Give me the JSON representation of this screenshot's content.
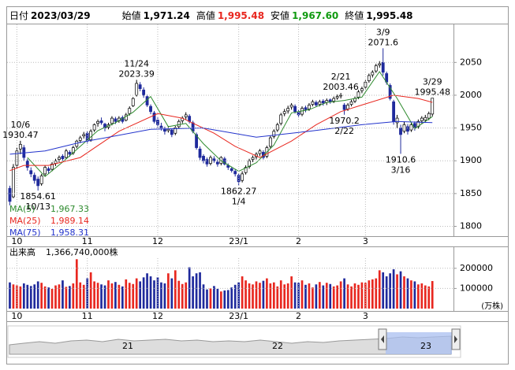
{
  "header": [
    {
      "label": "日付",
      "text": "2023/03/29"
    },
    {
      "label": "始値",
      "text": "1,971.24"
    },
    {
      "label": "高値",
      "text": "1,995.48",
      "color": "#e8271f"
    },
    {
      "label": "安値",
      "text": "1,967.60",
      "color": "#109a10"
    },
    {
      "label": "終値",
      "text": "1,995.48"
    }
  ],
  "chart_data": [
    {
      "type": "candlestick",
      "up_color": "#ffffff",
      "down_color": "#1f2a9c",
      "grid": true,
      "xlim": [
        -1,
        126
      ],
      "xticks": [
        {
          "value": 2,
          "label": "10"
        },
        {
          "value": 22,
          "label": "11"
        },
        {
          "value": 42,
          "label": "12"
        },
        {
          "value": 65,
          "label": "23/1"
        },
        {
          "value": 82,
          "label": "2"
        },
        {
          "value": 101,
          "label": "3"
        }
      ],
      "ylim": [
        1785,
        2108
      ],
      "yticks": [
        1800,
        1850,
        1900,
        1950,
        2000,
        2050
      ],
      "candles": [
        [
          1858,
          1862,
          1832,
          1838
        ],
        [
          1845,
          1895,
          1843,
          1890
        ],
        [
          1893,
          1920,
          1888,
          1915
        ],
        [
          1918,
          1930.47,
          1910,
          1925
        ],
        [
          1920,
          1924,
          1900,
          1905
        ],
        [
          1900,
          1903,
          1885,
          1890
        ],
        [
          1885,
          1890,
          1875,
          1880
        ],
        [
          1878,
          1882,
          1865,
          1870
        ],
        [
          1872,
          1876,
          1854.61,
          1862
        ],
        [
          1865,
          1880,
          1862,
          1877
        ],
        [
          1880,
          1893,
          1876,
          1890
        ],
        [
          1888,
          1891,
          1880,
          1885
        ],
        [
          1887,
          1898,
          1884,
          1895
        ],
        [
          1896,
          1903,
          1892,
          1900
        ],
        [
          1902,
          1908,
          1898,
          1905
        ],
        [
          1907,
          1910,
          1900,
          1903
        ],
        [
          1905,
          1918,
          1903,
          1915
        ],
        [
          1913,
          1916,
          1906,
          1910
        ],
        [
          1912,
          1923,
          1909,
          1920
        ],
        [
          1922,
          1932,
          1919,
          1930
        ],
        [
          1931,
          1938,
          1927,
          1935
        ],
        [
          1938,
          1944,
          1934,
          1940
        ],
        [
          1942,
          1945,
          1926,
          1930
        ],
        [
          1932,
          1948,
          1929,
          1945
        ],
        [
          1947,
          1957,
          1944,
          1955
        ],
        [
          1957,
          1963,
          1952,
          1960
        ],
        [
          1961,
          1966,
          1955,
          1958
        ],
        [
          1956,
          1958,
          1945,
          1950
        ],
        [
          1951,
          1958,
          1948,
          1955
        ],
        [
          1957,
          1968,
          1954,
          1965
        ],
        [
          1964,
          1967,
          1956,
          1960
        ],
        [
          1961,
          1968,
          1958,
          1965
        ],
        [
          1966,
          1969,
          1957,
          1960
        ],
        [
          1962,
          1973,
          1960,
          1970
        ],
        [
          1972,
          1983,
          1969,
          1980
        ],
        [
          1984,
          1997,
          1982,
          1995
        ],
        [
          2000,
          2023.39,
          1998,
          2018
        ],
        [
          2016,
          2020,
          2006,
          2010
        ],
        [
          2008,
          2012,
          1996,
          2000
        ],
        [
          1998,
          2001,
          1982,
          1985
        ],
        [
          1983,
          1986,
          1971,
          1975
        ],
        [
          1973,
          1976,
          1957,
          1960
        ],
        [
          1962,
          1966,
          1950,
          1955
        ],
        [
          1953,
          1958,
          1946,
          1950
        ],
        [
          1948,
          1952,
          1940,
          1945
        ],
        [
          1946,
          1953,
          1943,
          1948
        ],
        [
          1947,
          1949,
          1936,
          1940
        ],
        [
          1942,
          1953,
          1939,
          1950
        ],
        [
          1952,
          1963,
          1949,
          1960
        ],
        [
          1961,
          1968,
          1957,
          1965
        ],
        [
          1967,
          1974,
          1963,
          1970
        ],
        [
          1968,
          1971,
          1957,
          1960
        ],
        [
          1958,
          1961,
          1942,
          1945
        ],
        [
          1940,
          1943,
          1917,
          1920
        ],
        [
          1918,
          1922,
          1901,
          1905
        ],
        [
          1907,
          1910,
          1896,
          1900
        ],
        [
          1902,
          1905,
          1891,
          1895
        ],
        [
          1896,
          1908,
          1893,
          1905
        ],
        [
          1903,
          1907,
          1897,
          1900
        ],
        [
          1898,
          1902,
          1891,
          1895
        ],
        [
          1896,
          1907,
          1893,
          1905
        ],
        [
          1903,
          1906,
          1893,
          1895
        ],
        [
          1893,
          1896,
          1886,
          1890
        ],
        [
          1888,
          1891,
          1882,
          1885
        ],
        [
          1884,
          1887,
          1876,
          1880
        ],
        [
          1878,
          1881,
          1862.27,
          1868
        ],
        [
          1870,
          1884,
          1867,
          1880
        ],
        [
          1882,
          1893,
          1879,
          1890
        ],
        [
          1891,
          1903,
          1888,
          1900
        ],
        [
          1902,
          1908,
          1898,
          1905
        ],
        [
          1906,
          1913,
          1902,
          1910
        ],
        [
          1911,
          1918,
          1907,
          1915
        ],
        [
          1913,
          1916,
          1902,
          1905
        ],
        [
          1907,
          1923,
          1904,
          1920
        ],
        [
          1922,
          1938,
          1919,
          1935
        ],
        [
          1937,
          1948,
          1934,
          1945
        ],
        [
          1947,
          1958,
          1944,
          1955
        ],
        [
          1957,
          1973,
          1954,
          1970
        ],
        [
          1972,
          1979,
          1968,
          1975
        ],
        [
          1976,
          1984,
          1972,
          1980
        ],
        [
          1982,
          1988,
          1978,
          1985
        ],
        [
          1983,
          1986,
          1972,
          1975
        ],
        [
          1974,
          1978,
          1966,
          1970
        ],
        [
          1971,
          1983,
          1968,
          1980
        ],
        [
          1981,
          1984,
          1974,
          1978
        ],
        [
          1979,
          1988,
          1976,
          1985
        ],
        [
          1986,
          1993,
          1983,
          1990
        ],
        [
          1989,
          1992,
          1982,
          1985
        ],
        [
          1986,
          1993,
          1983,
          1990
        ],
        [
          1991,
          1994,
          1984,
          1988
        ],
        [
          1989,
          1995,
          1985,
          1992
        ],
        [
          1993,
          1995,
          1987,
          1990
        ],
        [
          1991,
          1998,
          1988,
          1995
        ],
        [
          1996,
          2001,
          1993,
          1998
        ],
        [
          1999,
          2003.46,
          1995,
          2000
        ],
        [
          1985,
          1988,
          1970.2,
          1978
        ],
        [
          1979,
          1988,
          1976,
          1985
        ],
        [
          1986,
          1993,
          1983,
          1990
        ],
        [
          1991,
          1998,
          1988,
          1995
        ],
        [
          1997,
          2008,
          1994,
          2005
        ],
        [
          2007,
          2013,
          2003,
          2010
        ],
        [
          2012,
          2023,
          2009,
          2020
        ],
        [
          2022,
          2033,
          2019,
          2030
        ],
        [
          2031,
          2038,
          2027,
          2035
        ],
        [
          2037,
          2048,
          2034,
          2045
        ],
        [
          2046,
          2052,
          2042,
          2048
        ],
        [
          2050,
          2071.6,
          2030,
          2035
        ],
        [
          2033,
          2036,
          2016,
          2020
        ],
        [
          2015,
          2018,
          1992,
          1995
        ],
        [
          1990,
          1993,
          1955,
          1960
        ],
        [
          1958,
          1970,
          1950,
          1965
        ],
        [
          1950,
          1955,
          1910.6,
          1940
        ],
        [
          1945,
          1960,
          1942,
          1955
        ],
        [
          1952,
          1956,
          1940,
          1945
        ],
        [
          1947,
          1958,
          1944,
          1955
        ],
        [
          1957,
          1960,
          1946,
          1950
        ],
        [
          1952,
          1963,
          1949,
          1960
        ],
        [
          1961,
          1968,
          1957,
          1965
        ],
        [
          1962,
          1970,
          1958,
          1966
        ],
        [
          1965,
          1975,
          1962,
          1972
        ],
        [
          1971.24,
          1995.48,
          1967.6,
          1995.48
        ]
      ],
      "lines": [
        {
          "name": "MA(5)",
          "color": "#2e8b2e",
          "legend_label": "1,967.33",
          "x": [
            5,
            10,
            15,
            20,
            25,
            30,
            35,
            40,
            45,
            50,
            55,
            60,
            65,
            70,
            75,
            80,
            85,
            90,
            95,
            100,
            105,
            110,
            115,
            120
          ],
          "values": [
            1905,
            1876,
            1898,
            1922,
            1946,
            1958,
            1974,
            1998,
            1952,
            1957,
            1926,
            1900,
            1884,
            1897,
            1924,
            1973,
            1978,
            1989,
            1992,
            1997,
            2036,
            1995,
            1949,
            1967.33
          ]
        },
        {
          "name": "MA(25)",
          "color": "#e8271f",
          "legend_label": "1,989.14",
          "x": [
            0,
            4,
            11,
            20,
            31,
            42,
            49,
            58,
            64,
            71,
            80,
            87,
            94,
            100,
            109,
            116,
            120
          ],
          "values": [
            1885,
            1893,
            1893,
            1905,
            1945,
            1972,
            1965,
            1942,
            1922,
            1905,
            1930,
            1955,
            1975,
            1985,
            2000,
            1995,
            1989.14
          ]
        },
        {
          "name": "MA(75)",
          "color": "#2233cc",
          "legend_label": "1,958.31",
          "x": [
            0,
            10,
            20,
            40,
            55,
            70,
            85,
            100,
            110,
            120
          ],
          "values": [
            1910,
            1915,
            1928,
            1948,
            1950,
            1936,
            1945,
            1955,
            1960,
            1958.31
          ]
        }
      ],
      "annotations": [
        {
          "label": "10/6",
          "x": 3,
          "price": 1930.47
        },
        {
          "label": "10/13",
          "x": 8,
          "price": 1854.61
        },
        {
          "label": "11/24",
          "x": 36,
          "price": 2023.39
        },
        {
          "label": "1/4",
          "x": 65,
          "price": 1862.27
        },
        {
          "label": "2/21",
          "x": 94,
          "price": 2003.46
        },
        {
          "label": "2/22",
          "x": 95,
          "price": 1970.2
        },
        {
          "label": "3/9",
          "x": 106,
          "price": 2071.6
        },
        {
          "label": "3/16",
          "x": 111,
          "price": 1910.6
        },
        {
          "label": "3/29",
          "x": 120,
          "price": 1995.48
        }
      ]
    },
    {
      "type": "bar",
      "title": "出来高",
      "title_value": "1,366,740,000株",
      "unit": "(万株)",
      "up_color": "#e8271f",
      "down_color": "#1f2a9c",
      "grid": true,
      "xlim": [
        -1,
        126
      ],
      "xticks": [
        {
          "value": 2,
          "label": "10"
        },
        {
          "value": 22,
          "label": "11"
        },
        {
          "value": 42,
          "label": "12"
        },
        {
          "value": 65,
          "label": "23/1"
        },
        {
          "value": 82,
          "label": "2"
        },
        {
          "value": 101,
          "label": "3"
        }
      ],
      "ylim": [
        0,
        250000
      ],
      "yticks": [
        100000,
        200000
      ],
      "values": [
        130000,
        120000,
        115000,
        110000,
        125000,
        118000,
        112000,
        120000,
        135000,
        128000,
        110000,
        105000,
        98000,
        115000,
        120000,
        140000,
        108000,
        112000,
        125000,
        245000,
        130000,
        118000,
        150000,
        180000,
        135000,
        128000,
        120000,
        115000,
        140000,
        125000,
        132000,
        118000,
        110000,
        145000,
        128000,
        122000,
        150000,
        135000,
        155000,
        175000,
        160000,
        140000,
        155000,
        130000,
        125000,
        175000,
        150000,
        190000,
        138000,
        122000,
        130000,
        205000,
        160000,
        175000,
        180000,
        120000,
        95000,
        100000,
        112000,
        98000,
        85000,
        90000,
        92000,
        105000,
        118000,
        130000,
        160000,
        140000,
        125000,
        120000,
        135000,
        128000,
        138000,
        150000,
        125000,
        130000,
        110000,
        140000,
        120000,
        125000,
        160000,
        130000,
        128000,
        140000,
        118000,
        125000,
        105000,
        120000,
        132000,
        115000,
        128000,
        122000,
        110000,
        115000,
        135000,
        150000,
        120000,
        110000,
        125000,
        118000,
        130000,
        128000,
        140000,
        145000,
        150000,
        190000,
        180000,
        160000,
        175000,
        195000,
        170000,
        185000,
        160000,
        150000,
        140000,
        135000,
        120000,
        125000,
        115000,
        110000,
        136674
      ]
    }
  ],
  "navigator": {
    "labels": [
      "21",
      "22",
      "23"
    ]
  }
}
